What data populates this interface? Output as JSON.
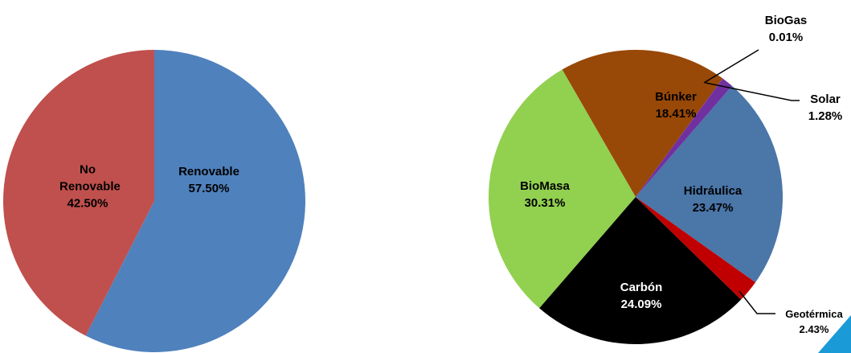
{
  "chart_data": [
    {
      "type": "pie",
      "categories": [
        "Renovable",
        "No Renovable"
      ],
      "values": [
        57.5,
        42.5
      ],
      "value_labels": [
        "57.50%",
        "42.50%"
      ],
      "colors": [
        "#4f81bd",
        "#c0504d"
      ]
    },
    {
      "type": "pie",
      "categories": [
        "BioGas",
        "Solar",
        "Hidráulica",
        "Geotérmica",
        "Carbón",
        "BioMasa",
        "Búnker"
      ],
      "values": [
        0.01,
        1.28,
        23.47,
        2.43,
        24.09,
        30.31,
        18.41
      ],
      "value_labels": [
        "0.01%",
        "1.28%",
        "23.47%",
        "2.43%",
        "24.09%",
        "30.31%",
        "18.41%"
      ],
      "colors": [
        "#7030a0",
        "#7030a0",
        "#4a76a8",
        "#c00000",
        "#000000",
        "#92d050",
        "#984807"
      ]
    }
  ]
}
